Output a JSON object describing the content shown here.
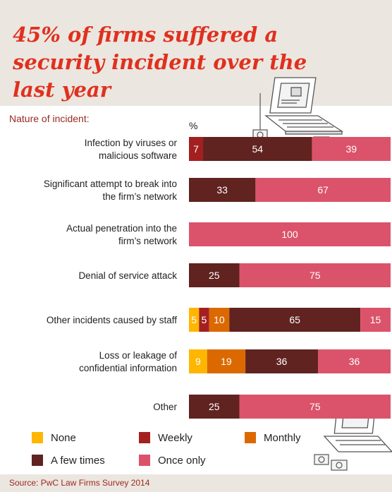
{
  "header": {
    "title": "45% of firms suffered a security incident over the last year"
  },
  "chart_data": {
    "type": "bar",
    "orientation": "horizontal",
    "stacked": true,
    "normalized": true,
    "subheader": "Nature of incident:",
    "unit": "%",
    "xlim": [
      0,
      100
    ],
    "grid": false,
    "legend_position": "bottom",
    "categories": [
      [
        "Infection by viruses or",
        "malicious software"
      ],
      [
        "Significant attempt to break into",
        "the firm’s network"
      ],
      [
        "Actual penetration into the",
        "firm’s network"
      ],
      [
        "Denial of service attack"
      ],
      [
        "Other incidents caused by staff"
      ],
      [
        "Loss or leakage of",
        "confidential information"
      ],
      [
        "Other"
      ]
    ],
    "series": [
      {
        "name": "None",
        "color": "#ffb600",
        "values": [
          0,
          0,
          0,
          0,
          5,
          9,
          0
        ]
      },
      {
        "name": "Weekly",
        "color": "#a32020",
        "values": [
          7,
          0,
          0,
          0,
          5,
          0,
          0
        ]
      },
      {
        "name": "Monthly",
        "color": "#dc6900",
        "values": [
          0,
          0,
          0,
          0,
          10,
          19,
          0
        ]
      },
      {
        "name": "A few times",
        "color": "#602320",
        "values": [
          54,
          33,
          0,
          25,
          65,
          36,
          25
        ]
      },
      {
        "name": "Once only",
        "color": "#db536a",
        "values": [
          39,
          67,
          100,
          75,
          15,
          36,
          75
        ]
      }
    ]
  },
  "footer": {
    "source": "Source: PwC Law Firms Survey 2014"
  },
  "icons": [
    "laptop-icon",
    "cd-icon"
  ]
}
